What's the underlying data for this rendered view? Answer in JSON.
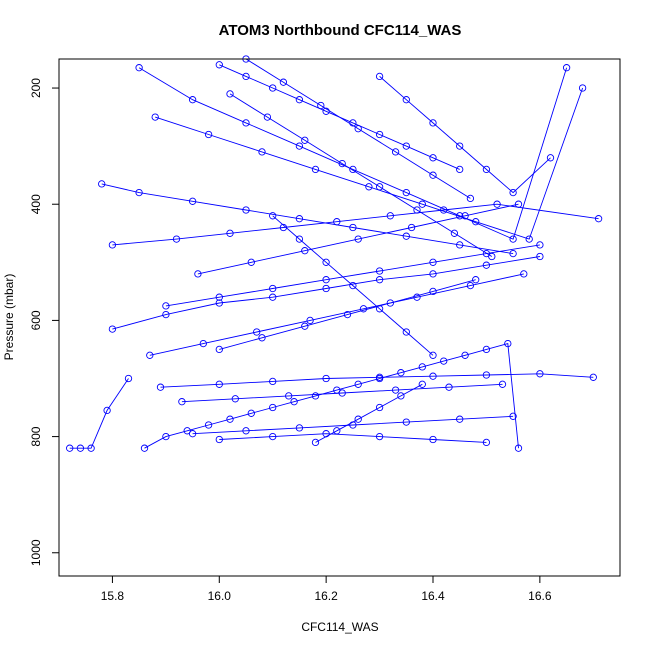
{
  "chart_data": {
    "type": "line",
    "title": "ATOM3 Northbound CFC114_WAS",
    "xlabel": "CFC114_WAS",
    "ylabel": "Pressure (mbar)",
    "xlim": [
      15.7,
      16.75
    ],
    "ylim": [
      1040,
      150
    ],
    "y_reversed": true,
    "grid": false,
    "legend": "none",
    "x_ticks": [
      15.8,
      16.0,
      16.2,
      16.4,
      16.6
    ],
    "x_tick_labels": [
      "15.8",
      "16.0",
      "16.2",
      "16.4",
      "16.6"
    ],
    "y_ticks": [
      200,
      400,
      600,
      800,
      1000
    ],
    "y_tick_labels": [
      "200",
      "400",
      "600",
      "800",
      "1000"
    ],
    "series_color": "#0000ff",
    "series": [
      {
        "x": [
          15.72,
          15.74,
          15.76,
          15.79,
          15.83
        ],
        "y": [
          820,
          820,
          820,
          755,
          700
        ]
      },
      {
        "x": [
          15.86,
          15.9,
          15.94,
          15.98,
          16.02,
          16.06,
          16.1,
          16.14,
          16.18,
          16.22,
          16.26,
          16.3,
          16.34,
          16.38,
          16.42,
          16.46,
          16.5,
          16.54,
          16.56
        ],
        "y": [
          820,
          800,
          790,
          780,
          770,
          760,
          750,
          740,
          730,
          720,
          710,
          700,
          690,
          680,
          670,
          660,
          650,
          640,
          820
        ]
      },
      {
        "x": [
          15.8,
          15.9,
          16.0,
          16.1,
          16.2,
          16.3,
          16.4,
          16.5,
          16.6
        ],
        "y": [
          615,
          590,
          570,
          560,
          545,
          530,
          520,
          505,
          490
        ]
      },
      {
        "x": [
          15.78,
          15.85,
          15.95,
          16.05,
          16.15,
          16.25,
          16.35,
          16.45,
          16.55
        ],
        "y": [
          365,
          380,
          395,
          410,
          425,
          440,
          455,
          470,
          485
        ]
      },
      {
        "x": [
          15.8,
          15.92,
          16.02,
          16.12,
          16.22,
          16.32,
          16.42,
          16.52,
          16.71
        ],
        "y": [
          470,
          460,
          450,
          440,
          430,
          420,
          410,
          400,
          425
        ]
      },
      {
        "x": [
          15.85,
          15.95,
          16.05,
          16.15,
          16.25,
          16.35,
          16.45,
          16.55,
          16.65
        ],
        "y": [
          165,
          220,
          260,
          300,
          340,
          380,
          420,
          460,
          165
        ]
      },
      {
        "x": [
          15.89,
          16.0,
          16.1,
          16.2,
          16.3,
          16.4,
          16.5,
          16.6,
          16.7
        ],
        "y": [
          715,
          710,
          705,
          700,
          698,
          696,
          694,
          692,
          698
        ]
      },
      {
        "x": [
          15.88,
          15.98,
          16.08,
          16.18,
          16.28,
          16.38,
          16.48,
          16.58,
          16.68
        ],
        "y": [
          250,
          280,
          310,
          340,
          370,
          400,
          430,
          460,
          200
        ]
      },
      {
        "x": [
          15.9,
          16.0,
          16.1,
          16.2,
          16.3,
          16.4,
          16.5,
          16.6
        ],
        "y": [
          575,
          560,
          545,
          530,
          515,
          500,
          485,
          470
        ]
      },
      {
        "x": [
          15.87,
          15.97,
          16.07,
          16.17,
          16.27,
          16.37,
          16.47,
          16.57
        ],
        "y": [
          660,
          640,
          620,
          600,
          580,
          560,
          540,
          520
        ]
      },
      {
        "x": [
          15.95,
          16.05,
          16.15,
          16.25,
          16.35,
          16.45,
          16.55
        ],
        "y": [
          795,
          790,
          785,
          780,
          775,
          770,
          765
        ]
      },
      {
        "x": [
          16.0,
          16.1,
          16.2,
          16.3,
          16.4,
          16.5
        ],
        "y": [
          805,
          800,
          795,
          800,
          805,
          810
        ]
      },
      {
        "x": [
          16.0,
          16.05,
          16.1,
          16.15,
          16.2,
          16.25,
          16.3,
          16.35,
          16.4,
          16.45
        ],
        "y": [
          160,
          180,
          200,
          220,
          240,
          260,
          280,
          300,
          320,
          340
        ]
      },
      {
        "x": [
          16.05,
          16.12,
          16.19,
          16.26,
          16.33,
          16.4,
          16.47
        ],
        "y": [
          150,
          190,
          230,
          270,
          310,
          350,
          390
        ]
      },
      {
        "x": [
          16.1,
          16.15,
          16.2,
          16.25,
          16.3,
          16.35,
          16.4
        ],
        "y": [
          420,
          460,
          500,
          540,
          580,
          620,
          660
        ]
      },
      {
        "x": [
          15.96,
          16.06,
          16.16,
          16.26,
          16.36,
          16.46,
          16.56
        ],
        "y": [
          520,
          500,
          480,
          460,
          440,
          420,
          400
        ]
      },
      {
        "x": [
          16.0,
          16.08,
          16.16,
          16.24,
          16.32,
          16.4,
          16.48
        ],
        "y": [
          650,
          630,
          610,
          590,
          570,
          550,
          530
        ]
      },
      {
        "x": [
          15.93,
          16.03,
          16.13,
          16.23,
          16.33,
          16.43,
          16.53
        ],
        "y": [
          740,
          735,
          730,
          725,
          720,
          715,
          710
        ]
      },
      {
        "x": [
          16.18,
          16.22,
          16.26,
          16.3,
          16.34,
          16.38
        ],
        "y": [
          810,
          790,
          770,
          750,
          730,
          710
        ]
      },
      {
        "x": [
          16.02,
          16.09,
          16.16,
          16.23,
          16.3,
          16.37,
          16.44,
          16.51
        ],
        "y": [
          210,
          250,
          290,
          330,
          370,
          410,
          450,
          490
        ]
      },
      {
        "x": [
          16.3,
          16.35,
          16.4,
          16.45,
          16.5,
          16.55,
          16.62
        ],
        "y": [
          180,
          220,
          260,
          300,
          340,
          380,
          320
        ]
      }
    ]
  }
}
